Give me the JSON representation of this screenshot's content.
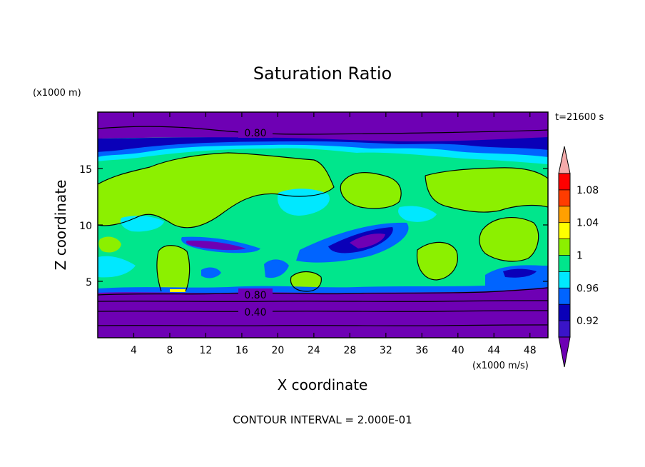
{
  "chart_data": {
    "type": "heatmap",
    "title": "Saturation Ratio",
    "xlabel": "X coordinate",
    "ylabel": "Z coordinate",
    "x_unit": "(x1000 m/s)",
    "y_unit": "(x1000 m)",
    "time_label": "t=21600 s",
    "footer": "CONTOUR INTERVAL = 2.000E-01",
    "xlim": [
      0,
      50
    ],
    "ylim": [
      0,
      20
    ],
    "x_ticks": [
      4,
      8,
      12,
      16,
      20,
      24,
      28,
      32,
      36,
      40,
      44,
      48
    ],
    "y_ticks": [
      5,
      10,
      15
    ],
    "contour_labels": [
      "0.80",
      "0.80",
      "0.40"
    ],
    "colorbar": {
      "levels": [
        0.9,
        0.92,
        0.94,
        0.96,
        0.98,
        1.0,
        1.02,
        1.04,
        1.06,
        1.08,
        1.1
      ],
      "tick_labels": [
        "0.92",
        "0.96",
        "1",
        "1.04",
        "1.08"
      ],
      "colors": [
        "#6e00b4",
        "#3a14c8",
        "#0a00b8",
        "#0064ff",
        "#00e8ff",
        "#00e68c",
        "#8cf000",
        "#ffff00",
        "#ffa000",
        "#ff3c00",
        "#ff0000",
        "#f5aaaa"
      ]
    }
  }
}
